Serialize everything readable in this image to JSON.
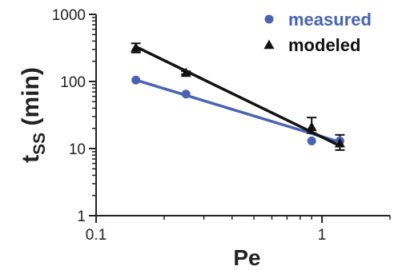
{
  "chart_data": {
    "type": "scatter",
    "xlabel": "Pe",
    "ylabel": {
      "main": "t",
      "sub": "SS",
      "unit": "(min)"
    },
    "x_scale": "log",
    "y_scale": "log",
    "xlim": [
      0.1,
      2
    ],
    "ylim": [
      1,
      1000
    ],
    "x_ticks": [
      {
        "value": 0.1,
        "label": "0.1"
      },
      {
        "value": 1,
        "label": "1"
      }
    ],
    "y_ticks": [
      {
        "value": 1,
        "label": "1"
      },
      {
        "value": 10,
        "label": "10"
      },
      {
        "value": 100,
        "label": "100"
      },
      {
        "value": 1000,
        "label": "1000"
      }
    ],
    "grid": false,
    "legend_position": "top-right",
    "series": [
      {
        "name": "measured",
        "marker": "circle",
        "color": "#4a63b3",
        "x": [
          0.15,
          0.25,
          0.9,
          1.2
        ],
        "y": [
          105,
          65,
          13,
          13
        ],
        "fit": {
          "x": [
            0.15,
            1.2
          ],
          "y": [
            105,
            12.5
          ]
        }
      },
      {
        "name": "modeled",
        "marker": "triangle",
        "color": "#111111",
        "x": [
          0.15,
          0.25,
          0.9,
          1.2
        ],
        "y": [
          320,
          135,
          21,
          12
        ],
        "err_low": [
          270,
          128,
          17,
          9.5
        ],
        "err_high": [
          370,
          142,
          29,
          16
        ],
        "fit": {
          "x": [
            0.15,
            1.2
          ],
          "y": [
            330,
            11
          ]
        }
      }
    ]
  }
}
